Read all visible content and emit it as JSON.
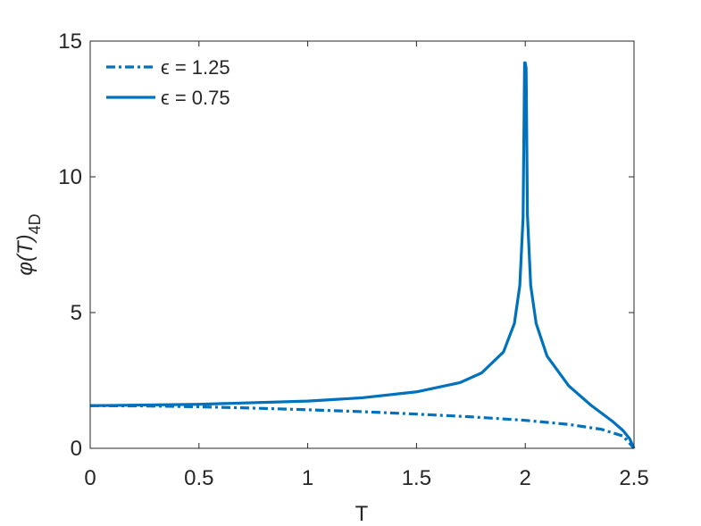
{
  "chart_data": {
    "type": "line",
    "xlabel": "T",
    "ylabel": "φ(T)",
    "ylabel_sub": "4D",
    "xlim": [
      0,
      2.5
    ],
    "ylim": [
      0,
      15
    ],
    "xticks": [
      0,
      0.5,
      1,
      1.5,
      2,
      2.5
    ],
    "xtick_labels": [
      "0",
      "0.5",
      "1",
      "1.5",
      "2",
      "2.5"
    ],
    "yticks": [
      0,
      5,
      10,
      15
    ],
    "ytick_labels": [
      "0",
      "5",
      "10",
      "15"
    ],
    "grid": false,
    "legend_position": "top-left",
    "line_color": "#0072BD",
    "series": [
      {
        "name": "ϵ = 1.25",
        "style": "dash-dot",
        "x": [
          0,
          0.25,
          0.5,
          0.75,
          1.0,
          1.25,
          1.5,
          1.75,
          2.0,
          2.2,
          2.35,
          2.45,
          2.5
        ],
        "y": [
          1.57,
          1.56,
          1.53,
          1.48,
          1.42,
          1.35,
          1.26,
          1.16,
          1.03,
          0.88,
          0.7,
          0.45,
          0.0
        ]
      },
      {
        "name": "ϵ = 0.75",
        "style": "solid",
        "x": [
          0,
          0.5,
          1.0,
          1.25,
          1.5,
          1.7,
          1.8,
          1.9,
          1.95,
          1.975,
          1.99,
          1.997,
          2.0,
          2.004,
          2.01,
          2.025,
          2.05,
          2.1,
          2.2,
          2.3,
          2.4,
          2.45,
          2.48,
          2.5
        ],
        "y": [
          1.57,
          1.62,
          1.74,
          1.86,
          2.08,
          2.42,
          2.78,
          3.55,
          4.6,
          6.0,
          8.5,
          14.2,
          14.2,
          14.0,
          8.6,
          6.0,
          4.6,
          3.4,
          2.3,
          1.6,
          1.0,
          0.65,
          0.35,
          0.0
        ]
      }
    ]
  }
}
